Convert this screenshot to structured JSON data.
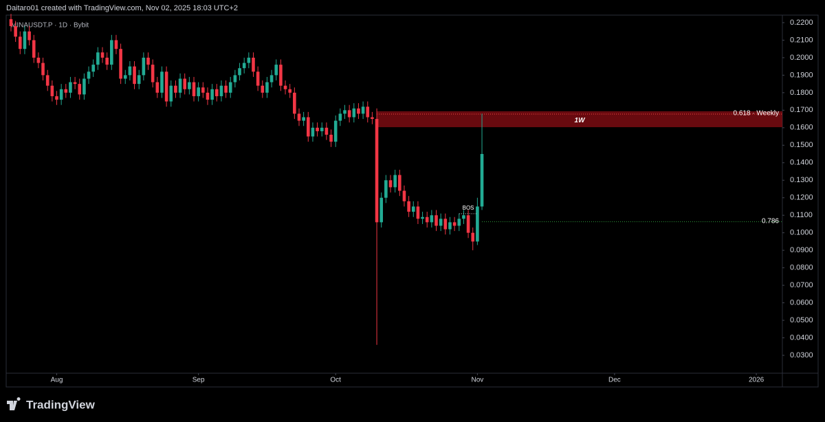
{
  "header": "Daitaro01 created with TradingView.com, Nov 02, 2025 18:03 UTC+2",
  "footer": "TradingView",
  "chart_data": {
    "type": "candlestick",
    "title": "MINAUSDT.P · 1D · Bybit",
    "up_color": "#22ab94",
    "down_color": "#f23645",
    "categories": [
      null,
      null,
      null,
      null,
      null,
      null,
      null,
      null,
      null,
      null,
      null,
      null,
      null,
      null,
      null,
      null,
      null,
      null,
      null,
      null,
      null,
      null,
      null,
      null,
      null,
      null,
      null,
      null,
      null,
      null,
      null,
      null,
      null,
      null,
      null,
      null,
      null,
      null,
      null,
      null,
      null,
      null,
      null,
      null,
      null,
      null,
      null,
      null,
      null,
      null,
      null,
      null,
      null,
      null,
      null,
      null,
      null,
      null,
      null,
      null,
      null,
      null,
      null,
      null,
      null,
      null,
      null,
      null,
      null,
      null,
      null,
      null,
      null,
      null,
      null,
      null,
      null,
      null,
      null,
      null,
      null,
      null,
      null,
      null,
      null,
      null,
      null,
      null,
      null,
      null,
      null,
      null,
      null,
      null,
      null,
      null,
      null,
      null,
      null,
      null,
      null,
      null,
      null,
      null
    ],
    "open": [
      0.222,
      0.218,
      0.212,
      0.205,
      0.215,
      0.21,
      0.2,
      0.197,
      0.19,
      0.184,
      0.178,
      0.176,
      0.182,
      0.18,
      0.186,
      0.185,
      0.179,
      0.188,
      0.192,
      0.196,
      0.203,
      0.2,
      0.196,
      0.21,
      0.205,
      0.188,
      0.19,
      0.195,
      0.185,
      0.19,
      0.2,
      0.196,
      0.186,
      0.18,
      0.192,
      0.175,
      0.184,
      0.18,
      0.188,
      0.182,
      0.186,
      0.178,
      0.183,
      0.18,
      0.176,
      0.182,
      0.178,
      0.184,
      0.18,
      0.186,
      0.19,
      0.194,
      0.197,
      0.2,
      0.192,
      0.184,
      0.18,
      0.186,
      0.19,
      0.196,
      0.184,
      0.182,
      0.18,
      0.168,
      0.164,
      0.166,
      0.155,
      0.16,
      0.158,
      0.16,
      0.156,
      0.152,
      0.164,
      0.168,
      0.17,
      0.166,
      0.171,
      0.168,
      0.172,
      0.166,
      0.165,
      0.106,
      0.12,
      0.13,
      0.126,
      0.133,
      0.124,
      0.118,
      0.112,
      0.115,
      0.108,
      0.109,
      0.106,
      0.11,
      0.104,
      0.108,
      0.102,
      0.106,
      0.104,
      0.108,
      0.11,
      0.1,
      0.095,
      0.115
    ],
    "high": [
      0.225,
      0.221,
      0.215,
      0.218,
      0.218,
      0.213,
      0.203,
      0.2,
      0.193,
      0.187,
      0.181,
      0.185,
      0.185,
      0.189,
      0.189,
      0.188,
      0.191,
      0.195,
      0.199,
      0.206,
      0.206,
      0.203,
      0.213,
      0.213,
      0.208,
      0.193,
      0.198,
      0.198,
      0.193,
      0.203,
      0.203,
      0.199,
      0.189,
      0.195,
      0.195,
      0.187,
      0.187,
      0.191,
      0.191,
      0.189,
      0.189,
      0.186,
      0.186,
      0.183,
      0.185,
      0.185,
      0.187,
      0.187,
      0.189,
      0.193,
      0.197,
      0.2,
      0.203,
      0.203,
      0.195,
      0.187,
      0.189,
      0.193,
      0.199,
      0.199,
      0.187,
      0.185,
      0.183,
      0.171,
      0.169,
      0.169,
      0.163,
      0.163,
      0.163,
      0.163,
      0.159,
      0.167,
      0.171,
      0.173,
      0.173,
      0.174,
      0.174,
      0.175,
      0.175,
      0.169,
      0.171,
      0.123,
      0.133,
      0.133,
      0.136,
      0.136,
      0.127,
      0.121,
      0.118,
      0.118,
      0.112,
      0.112,
      0.113,
      0.113,
      0.111,
      0.111,
      0.109,
      0.109,
      0.111,
      0.113,
      0.113,
      0.103,
      0.12,
      0.168
    ],
    "low": [
      0.215,
      0.209,
      0.202,
      0.202,
      0.207,
      0.197,
      0.194,
      0.187,
      0.181,
      0.175,
      0.173,
      0.173,
      0.177,
      0.177,
      0.182,
      0.176,
      0.176,
      0.185,
      0.189,
      0.193,
      0.197,
      0.193,
      0.193,
      0.202,
      0.185,
      0.185,
      0.187,
      0.182,
      0.182,
      0.187,
      0.193,
      0.183,
      0.177,
      0.177,
      0.172,
      0.172,
      0.177,
      0.177,
      0.179,
      0.179,
      0.175,
      0.175,
      0.177,
      0.173,
      0.173,
      0.175,
      0.175,
      0.177,
      0.177,
      0.183,
      0.187,
      0.191,
      0.194,
      0.189,
      0.181,
      0.177,
      0.177,
      0.183,
      0.187,
      0.181,
      0.179,
      0.177,
      0.165,
      0.161,
      0.161,
      0.152,
      0.152,
      0.155,
      0.155,
      0.153,
      0.149,
      0.149,
      0.161,
      0.165,
      0.163,
      0.163,
      0.165,
      0.165,
      0.163,
      0.162,
      0.036,
      0.103,
      0.117,
      0.123,
      0.123,
      0.121,
      0.115,
      0.109,
      0.109,
      0.105,
      0.105,
      0.103,
      0.103,
      0.101,
      0.101,
      0.099,
      0.099,
      0.101,
      0.101,
      0.105,
      0.097,
      0.09,
      0.093,
      0.113
    ],
    "close": [
      0.218,
      0.212,
      0.205,
      0.215,
      0.21,
      0.2,
      0.197,
      0.19,
      0.184,
      0.178,
      0.176,
      0.182,
      0.18,
      0.186,
      0.185,
      0.179,
      0.188,
      0.192,
      0.196,
      0.203,
      0.2,
      0.196,
      0.21,
      0.205,
      0.188,
      0.19,
      0.195,
      0.185,
      0.19,
      0.2,
      0.196,
      0.186,
      0.18,
      0.192,
      0.175,
      0.184,
      0.18,
      0.188,
      0.182,
      0.186,
      0.178,
      0.183,
      0.18,
      0.176,
      0.182,
      0.178,
      0.184,
      0.18,
      0.186,
      0.19,
      0.194,
      0.197,
      0.2,
      0.192,
      0.184,
      0.18,
      0.186,
      0.19,
      0.196,
      0.184,
      0.182,
      0.18,
      0.168,
      0.164,
      0.166,
      0.155,
      0.16,
      0.158,
      0.16,
      0.156,
      0.152,
      0.164,
      0.168,
      0.17,
      0.166,
      0.171,
      0.168,
      0.172,
      0.166,
      0.165,
      0.106,
      0.12,
      0.13,
      0.126,
      0.133,
      0.124,
      0.118,
      0.112,
      0.115,
      0.108,
      0.109,
      0.106,
      0.11,
      0.104,
      0.108,
      0.102,
      0.106,
      0.104,
      0.108,
      0.11,
      0.1,
      0.095,
      0.115,
      0.145
    ],
    "xlim": [
      -1.05,
      168.7
    ],
    "xticks": [
      {
        "value": 10,
        "label": "Aug"
      },
      {
        "value": 41,
        "label": "Sep"
      },
      {
        "value": 71,
        "label": "Oct"
      },
      {
        "value": 102,
        "label": "Nov"
      },
      {
        "value": 132,
        "label": "Dec"
      },
      {
        "value": 163,
        "label": "2026"
      }
    ],
    "ylim": [
      0.0198,
      0.2243
    ],
    "yticks": [
      {
        "value": 0.03,
        "label": "0.0300"
      },
      {
        "value": 0.04,
        "label": "0.0400"
      },
      {
        "value": 0.05,
        "label": "0.0500"
      },
      {
        "value": 0.06,
        "label": "0.0600"
      },
      {
        "value": 0.07,
        "label": "0.0700"
      },
      {
        "value": 0.08,
        "label": "0.0800"
      },
      {
        "value": 0.09,
        "label": "0.0900"
      },
      {
        "value": 0.1,
        "label": "0.1000"
      },
      {
        "value": 0.11,
        "label": "0.1100"
      },
      {
        "value": 0.12,
        "label": "0.1200"
      },
      {
        "value": 0.13,
        "label": "0.1300"
      },
      {
        "value": 0.14,
        "label": "0.1400"
      },
      {
        "value": 0.15,
        "label": "0.1500"
      },
      {
        "value": 0.16,
        "label": "0.1600"
      },
      {
        "value": 0.17,
        "label": "0.1700"
      },
      {
        "value": 0.18,
        "label": "0.1800"
      },
      {
        "value": 0.19,
        "label": "0.1900"
      },
      {
        "value": 0.2,
        "label": "0.2000"
      },
      {
        "value": 0.21,
        "label": "0.2100"
      },
      {
        "value": 0.22,
        "label": "0.2200"
      }
    ],
    "grid": false,
    "zone": {
      "label": "1W",
      "from_index": 80,
      "low": 0.1603,
      "high": 0.1694,
      "color": "#8b0e14"
    },
    "levels": [
      {
        "label": "0.618 · Weekly",
        "value": 0.1678,
        "from_index": 80,
        "color": "#ff4a4a"
      },
      {
        "label": "0.786",
        "value": 0.1063,
        "from_index": 103,
        "color": "#2e9e3e"
      }
    ],
    "bos": {
      "label": "BOS",
      "value": 0.1109,
      "from_index": 98,
      "to_index": 102
    }
  }
}
